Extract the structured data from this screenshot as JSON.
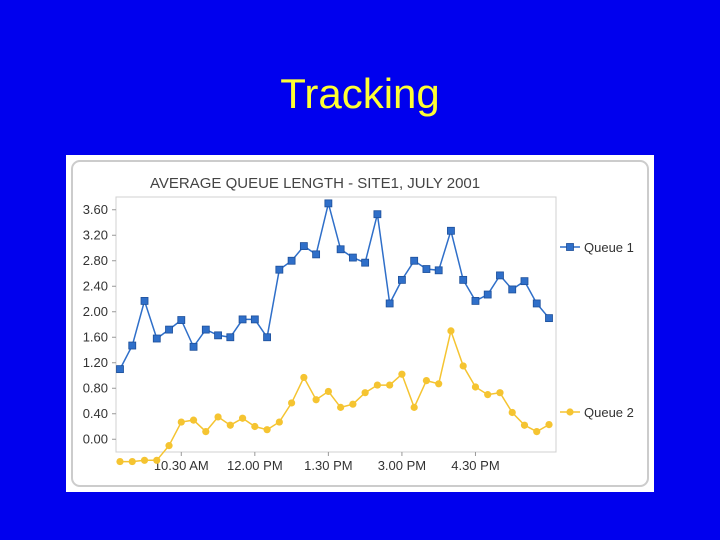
{
  "slide": {
    "title": "Tracking"
  },
  "colors": {
    "background": "#0000ee",
    "title": "#ffff33",
    "queue1": "#2f6fc9",
    "queue2": "#f5c431"
  },
  "chart_data": {
    "type": "line",
    "title": "AVERAGE QUEUE LENGTH - SITE1, JULY 2001",
    "xlabel": "",
    "ylabel": "",
    "ylim": [
      -0.2,
      3.8
    ],
    "yticks": [
      "3.60",
      "3.20",
      "2.80",
      "2.40",
      "2.00",
      "1.60",
      "1.20",
      "0.80",
      "0.40",
      "0.00"
    ],
    "xticks": [
      {
        "label": "10.30 AM",
        "index": 5
      },
      {
        "label": "12.00 PM",
        "index": 11
      },
      {
        "label": "1.30 PM",
        "index": 17
      },
      {
        "label": "3.00 PM",
        "index": 23
      },
      {
        "label": "4.30 PM",
        "index": 29
      }
    ],
    "legend_position": "right",
    "grid": false,
    "series": [
      {
        "name": "Queue 1",
        "marker": "square",
        "values": [
          1.1,
          1.47,
          2.17,
          1.58,
          1.72,
          1.87,
          1.45,
          1.72,
          1.63,
          1.6,
          1.88,
          1.88,
          1.6,
          2.66,
          2.8,
          3.03,
          2.9,
          3.7,
          2.98,
          2.85,
          2.77,
          3.53,
          2.13,
          2.5,
          2.8,
          2.67,
          2.65,
          3.27,
          2.5,
          2.17,
          2.27,
          2.57,
          2.35,
          2.48,
          2.13,
          1.9
        ]
      },
      {
        "name": "Queue 2",
        "marker": "circle",
        "values": [
          -0.35,
          -0.35,
          -0.33,
          -0.33,
          -0.1,
          0.27,
          0.3,
          0.12,
          0.35,
          0.22,
          0.33,
          0.2,
          0.15,
          0.27,
          0.57,
          0.97,
          0.62,
          0.75,
          0.5,
          0.55,
          0.73,
          0.85,
          0.85,
          1.02,
          0.5,
          0.92,
          0.87,
          1.7,
          1.15,
          0.82,
          0.7,
          0.73,
          0.42,
          0.22,
          0.12,
          0.23
        ]
      }
    ]
  }
}
